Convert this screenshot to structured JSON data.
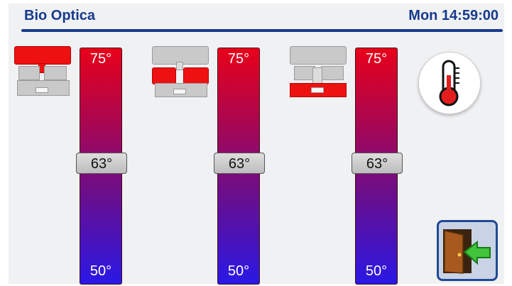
{
  "header": {
    "title": "Bio Optica",
    "clock": "Mon 14:59:00"
  },
  "zones": [
    {
      "max_label": "75°",
      "min_label": "50°",
      "setpoint_label": "63°",
      "setpoint": 63,
      "min": 50,
      "max": 75,
      "active_part": "top"
    },
    {
      "max_label": "75°",
      "min_label": "50°",
      "setpoint_label": "63°",
      "setpoint": 63,
      "min": 50,
      "max": 75,
      "active_part": "middle"
    },
    {
      "max_label": "75°",
      "min_label": "50°",
      "setpoint_label": "63°",
      "setpoint": 63,
      "min": 50,
      "max": 75,
      "active_part": "bottom"
    }
  ],
  "buttons": {
    "thermometer_icon": "thermometer-icon",
    "exit_icon": "exit-door-icon"
  },
  "colors": {
    "accent": "#163a8c",
    "heater_active": "#ee1111",
    "bar_top": "#e8001a",
    "bar_bottom": "#2a18e6"
  }
}
